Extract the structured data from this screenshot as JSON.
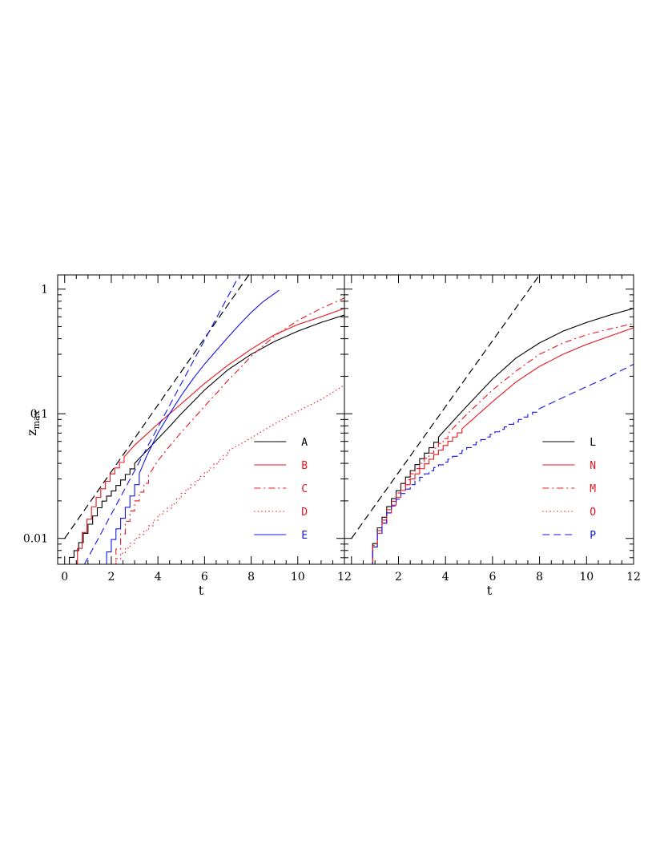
{
  "chart_data": [
    {
      "type": "line",
      "panel": "left",
      "xlabel": "t",
      "ylabel": "z",
      "ylabel_sub": "max",
      "xlim": [
        -0.3,
        12
      ],
      "ylim": [
        0.0062,
        1.3
      ],
      "yscale": "log",
      "xticks": [
        "0",
        "2",
        "4",
        "6",
        "8",
        "10",
        "12"
      ],
      "yticks": [
        "0.01",
        "0.1",
        "1"
      ],
      "legend_position": "lower-right",
      "reference_line": {
        "style": "dashed",
        "color": "#000000",
        "x": [
          0,
          7.9
        ],
        "y": [
          0.01,
          1.3
        ]
      },
      "series": [
        {
          "name": "A",
          "color": "#000000",
          "style": "solid",
          "step_until": 3.2,
          "x": [
            0.0,
            0.5,
            1,
            1.5,
            2,
            2.5,
            3,
            3.5,
            4,
            4.5,
            5,
            6,
            7,
            8,
            9,
            10,
            11,
            12
          ],
          "y": [
            0.0062,
            0.0085,
            0.013,
            0.019,
            0.024,
            0.031,
            0.04,
            0.05,
            0.063,
            0.079,
            0.1,
            0.155,
            0.225,
            0.3,
            0.38,
            0.46,
            0.54,
            0.62
          ]
        },
        {
          "name": "B",
          "color": "#e8141e",
          "style": "solid",
          "step_until": 2.6,
          "x": [
            0.35,
            0.8,
            1.2,
            1.6,
            2,
            2.5,
            3,
            3.5,
            4,
            5,
            6,
            7,
            8,
            9,
            10,
            11,
            12
          ],
          "y": [
            0.0062,
            0.012,
            0.019,
            0.026,
            0.034,
            0.044,
            0.056,
            0.068,
            0.083,
            0.12,
            0.175,
            0.245,
            0.33,
            0.43,
            0.52,
            0.6,
            0.7
          ]
        },
        {
          "name": "C",
          "color": "#e8141e",
          "style": "dashdot",
          "step_until": 3.8,
          "x": [
            2.0,
            2.5,
            3,
            3.5,
            4,
            4.5,
            5,
            5.5,
            6,
            6.5,
            7,
            7.5,
            8,
            9,
            10,
            11,
            12
          ],
          "y": [
            0.0062,
            0.0125,
            0.02,
            0.03,
            0.042,
            0.055,
            0.071,
            0.09,
            0.115,
            0.145,
            0.185,
            0.23,
            0.29,
            0.42,
            0.56,
            0.7,
            0.85
          ]
        },
        {
          "name": "D",
          "color": "#e8141e",
          "style": "dotted",
          "step_until": 7.2,
          "x": [
            2.0,
            2.5,
            3,
            3.5,
            4,
            4.5,
            5,
            6,
            7,
            8,
            9,
            10,
            11,
            12
          ],
          "y": [
            0.0062,
            0.008,
            0.01,
            0.012,
            0.0155,
            0.018,
            0.023,
            0.034,
            0.05,
            0.064,
            0.083,
            0.105,
            0.13,
            0.17
          ]
        },
        {
          "name": "E",
          "color": "#1414e8",
          "style": "solid",
          "step_until": 3.3,
          "x": [
            1.6,
            2,
            2.5,
            3,
            3.5,
            4,
            4.5,
            5,
            5.5,
            6,
            6.5,
            7,
            7.5,
            8,
            8.5,
            9.2
          ],
          "y": [
            0.0062,
            0.0098,
            0.016,
            0.027,
            0.045,
            0.07,
            0.1,
            0.14,
            0.19,
            0.25,
            0.32,
            0.41,
            0.52,
            0.65,
            0.79,
            0.98
          ]
        },
        {
          "name": "",
          "color": "#1414e8",
          "style": "dashed",
          "step_until": 0,
          "x": [
            0.85,
            7.5
          ],
          "y": [
            0.0062,
            1.3
          ]
        }
      ]
    },
    {
      "type": "line",
      "panel": "right",
      "xlabel": "t",
      "xlim": [
        -0.3,
        12
      ],
      "ylim": [
        0.0062,
        1.3
      ],
      "yscale": "log",
      "xticks": [
        "2",
        "4",
        "6",
        "8",
        "10",
        "12"
      ],
      "legend_position": "lower-right",
      "reference_line": {
        "style": "dashed",
        "color": "#000000",
        "x": [
          0,
          8
        ],
        "y": [
          0.01,
          1.3
        ]
      },
      "series": [
        {
          "name": "L",
          "color": "#000000",
          "style": "solid",
          "step_until": 3.8,
          "x": [
            0.7,
            1,
            1.5,
            2,
            2.5,
            3,
            3.5,
            4,
            4.5,
            5,
            6,
            7,
            8,
            9,
            10,
            11,
            12
          ],
          "y": [
            0.0062,
            0.011,
            0.018,
            0.026,
            0.035,
            0.046,
            0.059,
            0.075,
            0.095,
            0.12,
            0.19,
            0.28,
            0.37,
            0.46,
            0.54,
            0.62,
            0.7
          ]
        },
        {
          "name": "N",
          "color": "#e8141e",
          "style": "solid",
          "step_until": 4.8,
          "x": [
            0.7,
            1,
            1.5,
            2,
            2.5,
            3,
            3.5,
            4,
            5,
            6,
            7,
            8,
            9,
            10,
            11,
            12
          ],
          "y": [
            0.0062,
            0.01,
            0.016,
            0.023,
            0.03,
            0.038,
            0.047,
            0.058,
            0.085,
            0.125,
            0.18,
            0.24,
            0.3,
            0.36,
            0.42,
            0.49
          ]
        },
        {
          "name": "M",
          "color": "#e8141e",
          "style": "dashdot",
          "step_until": 4.2,
          "x": [
            0.7,
            1,
            1.5,
            2,
            2.5,
            3,
            3.5,
            4,
            4.5,
            5,
            6,
            7,
            8,
            9,
            10,
            11,
            12
          ],
          "y": [
            0.0062,
            0.0105,
            0.017,
            0.025,
            0.033,
            0.042,
            0.053,
            0.066,
            0.083,
            0.103,
            0.155,
            0.22,
            0.3,
            0.37,
            0.43,
            0.48,
            0.53
          ]
        },
        {
          "name": "O",
          "color": "#e8141e",
          "style": "dotted",
          "step_until": 0,
          "x": [],
          "y": []
        },
        {
          "name": "P",
          "color": "#1414e8",
          "style": "dashed",
          "step_until": 8.0,
          "x": [
            0.7,
            1,
            1.5,
            2,
            2.5,
            3,
            3.5,
            4,
            5,
            6,
            7,
            8,
            9,
            10,
            11,
            12
          ],
          "y": [
            0.0062,
            0.01,
            0.016,
            0.022,
            0.027,
            0.032,
            0.037,
            0.042,
            0.055,
            0.07,
            0.088,
            0.11,
            0.135,
            0.165,
            0.2,
            0.25
          ]
        }
      ]
    }
  ]
}
